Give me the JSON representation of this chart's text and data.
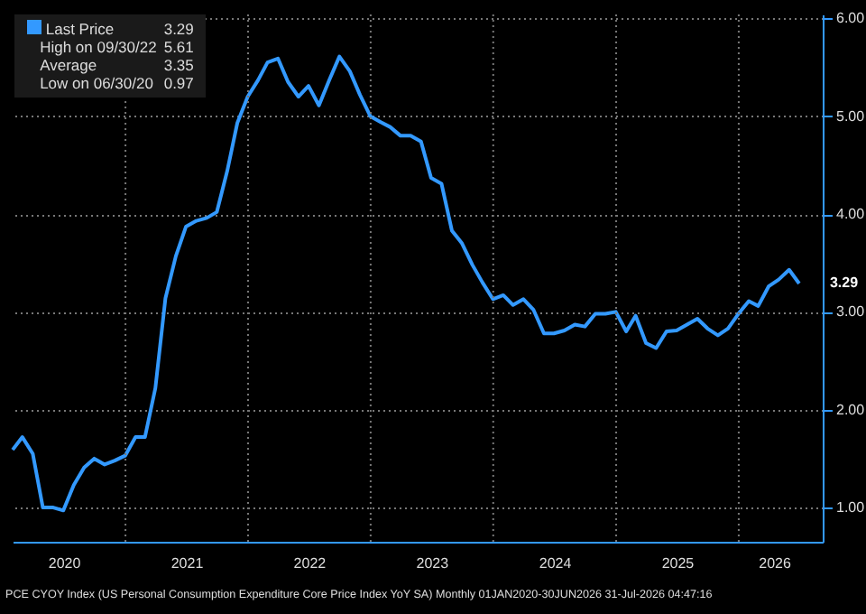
{
  "chart_data": {
    "type": "line",
    "x": [
      "2020-01-31",
      "2020-02-29",
      "2020-03-31",
      "2020-04-30",
      "2020-05-31",
      "2020-06-30",
      "2020-07-31",
      "2020-08-31",
      "2020-09-30",
      "2020-10-31",
      "2020-11-30",
      "2020-12-31",
      "2021-01-31",
      "2021-02-28",
      "2021-03-31",
      "2021-04-30",
      "2021-05-31",
      "2021-06-30",
      "2021-07-31",
      "2021-08-31",
      "2021-09-30",
      "2021-10-31",
      "2021-11-30",
      "2021-12-31",
      "2022-01-31",
      "2022-02-28",
      "2022-03-31",
      "2022-04-30",
      "2022-05-31",
      "2022-06-30",
      "2022-07-31",
      "2022-08-31",
      "2022-09-30",
      "2022-10-31",
      "2022-11-30",
      "2022-12-31",
      "2023-01-31",
      "2023-02-28",
      "2023-03-31",
      "2023-04-30",
      "2023-05-31",
      "2023-06-30",
      "2023-07-31",
      "2023-08-31",
      "2023-09-30",
      "2023-10-31",
      "2023-11-30",
      "2023-12-31",
      "2024-01-31",
      "2024-02-29",
      "2024-03-31",
      "2024-04-30",
      "2024-05-31",
      "2024-06-30",
      "2024-07-31",
      "2024-08-31",
      "2024-09-30",
      "2024-10-31",
      "2024-11-30",
      "2024-12-31",
      "2025-01-31",
      "2025-02-28",
      "2025-03-31",
      "2025-04-30",
      "2025-05-31",
      "2025-06-30",
      "2025-07-31",
      "2025-08-31",
      "2025-09-30",
      "2025-10-31",
      "2025-11-30",
      "2025-12-31",
      "2026-01-31",
      "2026-02-28",
      "2026-03-31",
      "2026-04-30",
      "2026-05-31",
      "2026-06-30"
    ],
    "series": [
      {
        "name": "Last Price",
        "color": "#3399ff",
        "values": [
          1.59,
          1.72,
          1.55,
          1.0,
          1.0,
          0.97,
          1.23,
          1.41,
          1.5,
          1.44,
          1.48,
          1.53,
          1.72,
          1.72,
          2.22,
          3.14,
          3.57,
          3.87,
          3.93,
          3.96,
          4.02,
          4.44,
          4.93,
          5.2,
          5.37,
          5.55,
          5.59,
          5.35,
          5.2,
          5.31,
          5.11,
          5.37,
          5.61,
          5.46,
          5.22,
          5.0,
          4.94,
          4.89,
          4.8,
          4.8,
          4.74,
          4.37,
          4.31,
          3.83,
          3.7,
          3.48,
          3.3,
          3.13,
          3.17,
          3.07,
          3.13,
          3.02,
          2.78,
          2.78,
          2.81,
          2.87,
          2.85,
          2.98,
          2.98,
          3.0,
          2.8,
          2.96,
          2.68,
          2.63,
          2.8,
          2.81,
          2.87,
          2.93,
          2.83,
          2.76,
          2.83,
          2.98,
          3.11,
          3.06,
          3.26,
          3.33,
          3.43,
          3.29
        ]
      }
    ],
    "xlim": [
      "2020-01-31",
      "2026-09-08"
    ],
    "xticks": [
      {
        "value": "2021-01-01",
        "label": null
      },
      {
        "value": "2022-01-01",
        "label": null
      },
      {
        "value": "2023-01-01",
        "label": null
      },
      {
        "value": "2024-01-01",
        "label": null
      },
      {
        "value": "2025-01-01",
        "label": null
      },
      {
        "value": "2026-01-01",
        "label": null
      },
      {
        "value": "2020-07-01",
        "label": "2020"
      },
      {
        "value": "2021-07-01",
        "label": "2021"
      },
      {
        "value": "2022-07-01",
        "label": "2022"
      },
      {
        "value": "2023-07-01",
        "label": "2023"
      },
      {
        "value": "2024-07-01",
        "label": "2024"
      },
      {
        "value": "2025-07-01",
        "label": "2025"
      },
      {
        "value": "2026-04-16",
        "label": "2026"
      }
    ],
    "ylim": [
      0.65,
      6.04
    ],
    "yticks": [
      {
        "value": 1,
        "label": "1.00"
      },
      {
        "value": 2,
        "label": "2.00"
      },
      {
        "value": 3,
        "label": "3.00"
      },
      {
        "value": 4,
        "label": "4.00"
      },
      {
        "value": 5,
        "label": "5.00"
      },
      {
        "value": 6,
        "label": "6.00"
      }
    ],
    "grid": true,
    "legend": "top left",
    "marker": "none",
    "line_style": "solid",
    "annotations": [
      "3.29",
      "High on 09/30/22 5.61",
      "Average 3.35",
      "Low on 06/30/20 0.97",
      "PCE CYOY Index (US Personal Consumption Expenditure Core Price Index YoY SA) Monthly 01JAN2020-30JUN2026 31-Jul-2026 04:47:16",
      {
        "text": "3.29",
        "x": "2026-06-30",
        "y": 3.29
      }
    ]
  }
}
